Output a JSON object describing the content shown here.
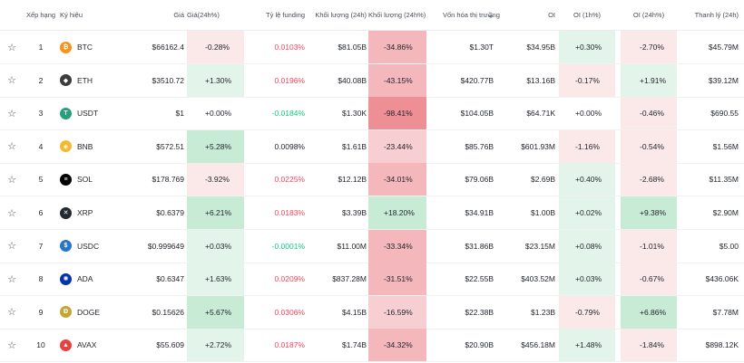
{
  "headers": {
    "rank": "Xếp hạng",
    "symbol": "Ký hiệu",
    "price": "Giá",
    "change24h": "Giá(24h%)",
    "funding": "Tỷ lệ funding",
    "volume": "Khối lượng (24h)",
    "volume_change": "Khối lượng (24h%)",
    "market_cap": "Vốn hóa thị trường",
    "oi": "OI",
    "oi_1h": "OI (1h%)",
    "oi_24h": "OI (24h%)",
    "liquidation": "Thanh lý (24h)"
  },
  "rows": [
    {
      "rank": "1",
      "symbol": "BTC",
      "price": "$66162.4",
      "change": "-0.28%",
      "funding": "0.0103%",
      "volume": "$81.05B",
      "volume_change": "-34.86%",
      "market_cap": "$1.30T",
      "oi": "$34.95B",
      "oi_1h": "+0.30%",
      "oi_24h": "-2.70%",
      "liquidation": "$45.79M",
      "coin_color": "#f7931a",
      "coin_icon": "bitcoin-icon"
    },
    {
      "rank": "2",
      "symbol": "ETH",
      "price": "$3510.72",
      "change": "+1.30%",
      "funding": "0.0196%",
      "volume": "$40.08B",
      "volume_change": "-43.15%",
      "market_cap": "$420.77B",
      "oi": "$13.16B",
      "oi_1h": "-0.17%",
      "oi_24h": "+1.91%",
      "liquidation": "$39.12M",
      "coin_color": "#3c3c3d",
      "coin_icon": "ethereum-icon"
    },
    {
      "rank": "3",
      "symbol": "USDT",
      "price": "$1",
      "change": "+0.00%",
      "funding": "-0.0184%",
      "volume": "$1.30K",
      "volume_change": "-98.41%",
      "market_cap": "$104.05B",
      "oi": "$64.71K",
      "oi_1h": "+0.00%",
      "oi_24h": "-0.46%",
      "liquidation": "$690.55",
      "coin_color": "#26a17b",
      "coin_icon": "tether-icon"
    },
    {
      "rank": "4",
      "symbol": "BNB",
      "price": "$572.51",
      "change": "+5.28%",
      "funding": "0.0098%",
      "volume": "$1.61B",
      "volume_change": "-23.44%",
      "market_cap": "$85.76B",
      "oi": "$601.93M",
      "oi_1h": "-1.16%",
      "oi_24h": "-0.54%",
      "liquidation": "$1.56M",
      "coin_color": "#f3ba2f",
      "coin_icon": "bnb-icon"
    },
    {
      "rank": "5",
      "symbol": "SOL",
      "price": "$178.769",
      "change": "-3.92%",
      "funding": "0.0225%",
      "volume": "$12.12B",
      "volume_change": "-34.01%",
      "market_cap": "$79.06B",
      "oi": "$2.69B",
      "oi_1h": "+0.40%",
      "oi_24h": "-2.68%",
      "liquidation": "$11.35M",
      "coin_color": "#000000",
      "coin_icon": "solana-icon"
    },
    {
      "rank": "6",
      "symbol": "XRP",
      "price": "$0.6379",
      "change": "+6.21%",
      "funding": "0.0183%",
      "volume": "$3.39B",
      "volume_change": "+18.20%",
      "market_cap": "$34.91B",
      "oi": "$1.00B",
      "oi_1h": "+0.02%",
      "oi_24h": "+9.38%",
      "liquidation": "$2.90M",
      "coin_color": "#23292f",
      "coin_icon": "xrp-icon"
    },
    {
      "rank": "7",
      "symbol": "USDC",
      "price": "$0.999649",
      "change": "+0.03%",
      "funding": "-0.0001%",
      "volume": "$11.00M",
      "volume_change": "-33.34%",
      "market_cap": "$31.86B",
      "oi": "$23.15M",
      "oi_1h": "+0.08%",
      "oi_24h": "-1.01%",
      "liquidation": "$5.00",
      "coin_color": "#2775ca",
      "coin_icon": "usdc-icon"
    },
    {
      "rank": "8",
      "symbol": "ADA",
      "price": "$0.6347",
      "change": "+1.63%",
      "funding": "0.0209%",
      "volume": "$837.28M",
      "volume_change": "-31.51%",
      "market_cap": "$22.55B",
      "oi": "$403.52M",
      "oi_1h": "+0.03%",
      "oi_24h": "-0.67%",
      "liquidation": "$436.06K",
      "coin_color": "#0033ad",
      "coin_icon": "cardano-icon"
    },
    {
      "rank": "9",
      "symbol": "DOGE",
      "price": "$0.15626",
      "change": "+5.67%",
      "funding": "0.0306%",
      "volume": "$4.15B",
      "volume_change": "-16.59%",
      "market_cap": "$22.38B",
      "oi": "$1.23B",
      "oi_1h": "-0.79%",
      "oi_24h": "+6.86%",
      "liquidation": "$7.78M",
      "coin_color": "#c2a633",
      "coin_icon": "dogecoin-icon"
    },
    {
      "rank": "10",
      "symbol": "AVAX",
      "price": "$55.609",
      "change": "+2.72%",
      "funding": "0.0187%",
      "volume": "$1.74B",
      "volume_change": "-34.32%",
      "market_cap": "$20.90B",
      "oi": "$456.18M",
      "oi_1h": "+1.48%",
      "oi_24h": "-1.84%",
      "liquidation": "$898.12K",
      "coin_color": "#e84142",
      "coin_icon": "avalanche-icon"
    }
  ]
}
